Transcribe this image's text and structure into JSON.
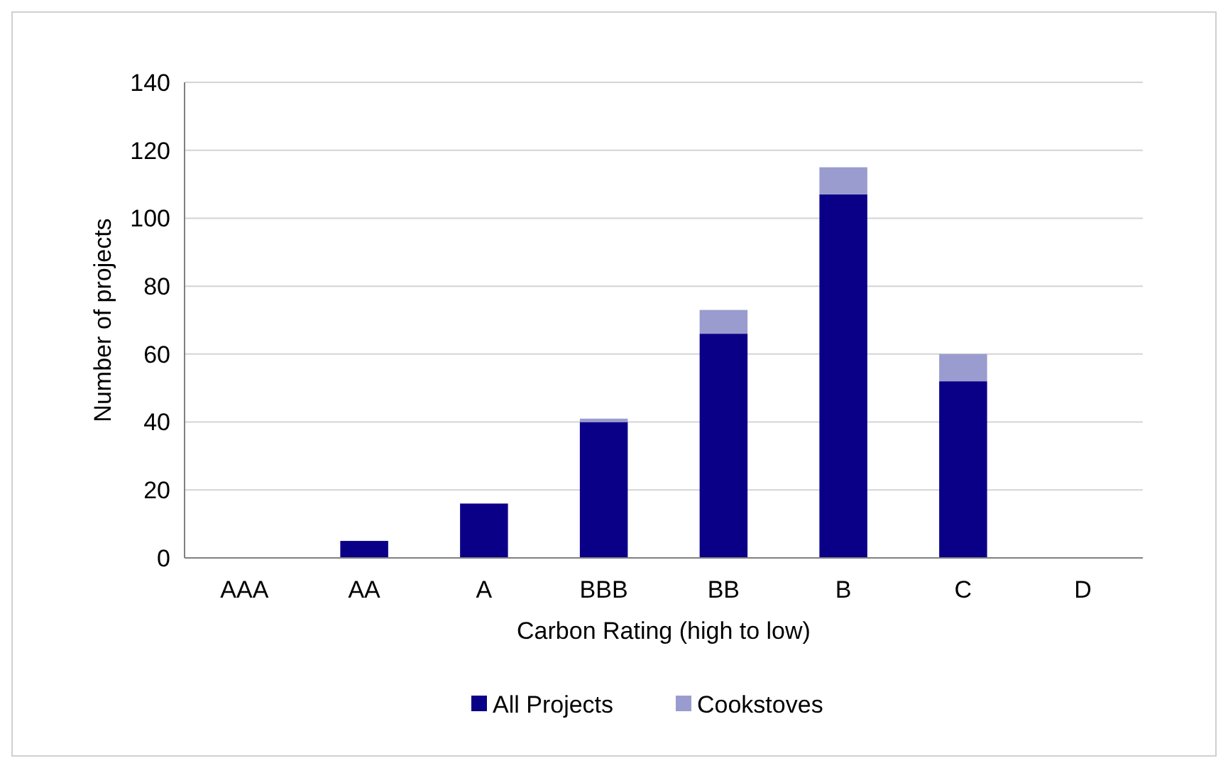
{
  "chart_data": {
    "type": "bar",
    "xlabel": "Carbon Rating (high to low)",
    "ylabel": "Number of projects",
    "categories": [
      "AAA",
      "AA",
      "A",
      "BBB",
      "BB",
      "B",
      "C",
      "D"
    ],
    "series": [
      {
        "name": "All Projects",
        "color": "#0a0087",
        "values": [
          0,
          5,
          16,
          40,
          66,
          107,
          52,
          0
        ]
      },
      {
        "name": "Cookstoves",
        "color": "#9a9ccf",
        "values": [
          0,
          0,
          0,
          1,
          7,
          8,
          8,
          0
        ]
      }
    ],
    "stacked": true,
    "ylim": [
      0,
      140
    ],
    "yticks": [
      0,
      20,
      40,
      60,
      80,
      100,
      120,
      140
    ],
    "grid": "y",
    "legend": "bottom"
  }
}
